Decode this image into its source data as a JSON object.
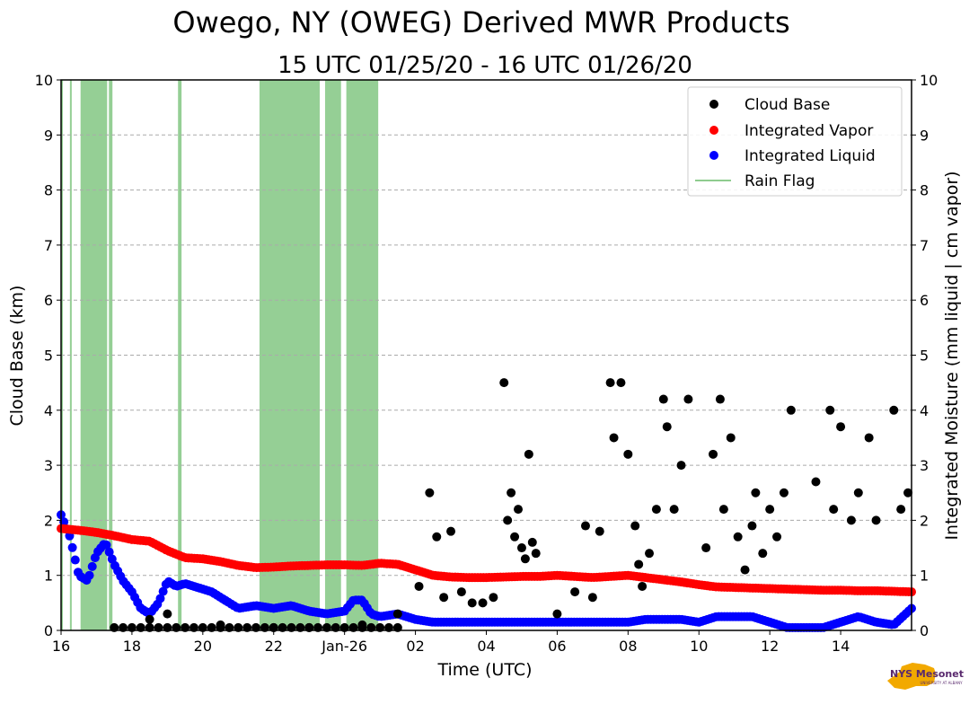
{
  "chart_data": {
    "type": "scatter",
    "title": "Owego, NY (OWEG) Derived MWR Products",
    "subtitle": "15 UTC 01/25/20 - 16 UTC 01/26/20",
    "xlabel": "Time (UTC)",
    "ylabel": "Cloud Base (km)",
    "ylabel_right": "Integrated Moisture (mm liquid | cm vapor)",
    "xlim_hours": [
      0,
      24
    ],
    "ylim": [
      0,
      10
    ],
    "ylim_right": [
      0,
      10
    ],
    "grid": "horizontal dashed",
    "legend_position": "top-right",
    "x_ticks": [
      {
        "hour": 0,
        "label": "16"
      },
      {
        "hour": 2,
        "label": "18"
      },
      {
        "hour": 4,
        "label": "20"
      },
      {
        "hour": 6,
        "label": "22"
      },
      {
        "hour": 8,
        "label": "Jan-26"
      },
      {
        "hour": 10,
        "label": "02"
      },
      {
        "hour": 12,
        "label": "04"
      },
      {
        "hour": 14,
        "label": "06"
      },
      {
        "hour": 16,
        "label": "08"
      },
      {
        "hour": 18,
        "label": "10"
      },
      {
        "hour": 20,
        "label": "12"
      },
      {
        "hour": 22,
        "label": "14"
      }
    ],
    "y_ticks": [
      "0",
      "1",
      "2",
      "3",
      "4",
      "5",
      "6",
      "7",
      "8",
      "9",
      "10"
    ],
    "legend": [
      "Cloud Base",
      "Integrated Vapor",
      "Integrated Liquid",
      "Rain Flag"
    ],
    "colors": {
      "cloud_base": "#000000",
      "vapor": "#ff0000",
      "liquid": "#0000ff",
      "rain": "#2ca02c"
    },
    "rain_flag_spans_hours": [
      [
        0.0,
        0.05
      ],
      [
        0.25,
        0.3
      ],
      [
        0.55,
        1.3
      ],
      [
        1.35,
        1.45
      ],
      [
        3.3,
        3.4
      ],
      [
        5.6,
        7.3
      ],
      [
        7.45,
        7.9
      ],
      [
        8.05,
        8.95
      ]
    ],
    "series": [
      {
        "name": "Integrated Vapor",
        "x": [
          0,
          0.5,
          1,
          1.5,
          2,
          2.5,
          3,
          3.5,
          4,
          4.5,
          5,
          5.5,
          6,
          6.5,
          7,
          7.5,
          8,
          8.5,
          9,
          9.5,
          10,
          10.5,
          11,
          11.5,
          12,
          12.5,
          13,
          13.5,
          14,
          14.5,
          15,
          15.5,
          16,
          16.5,
          17,
          17.5,
          18,
          18.5,
          19,
          19.5,
          20,
          20.5,
          21,
          21.5,
          22,
          22.5,
          23,
          23.5,
          24
        ],
        "y": [
          1.85,
          1.82,
          1.78,
          1.72,
          1.65,
          1.62,
          1.45,
          1.32,
          1.3,
          1.25,
          1.18,
          1.14,
          1.15,
          1.17,
          1.18,
          1.19,
          1.19,
          1.18,
          1.22,
          1.2,
          1.1,
          1.0,
          0.97,
          0.96,
          0.96,
          0.97,
          0.98,
          0.98,
          1.0,
          0.98,
          0.96,
          0.98,
          1.0,
          0.96,
          0.92,
          0.88,
          0.83,
          0.79,
          0.78,
          0.77,
          0.76,
          0.75,
          0.74,
          0.73,
          0.73,
          0.72,
          0.72,
          0.71,
          0.7
        ]
      },
      {
        "name": "Integrated Liquid",
        "x": [
          0,
          0.25,
          0.5,
          0.75,
          1,
          1.25,
          1.5,
          1.75,
          2,
          2.25,
          2.5,
          2.75,
          3,
          3.25,
          3.5,
          3.75,
          4,
          4.25,
          4.5,
          4.75,
          5,
          5.5,
          6,
          6.5,
          7,
          7.5,
          8,
          8.25,
          8.5,
          8.75,
          9,
          9.5,
          10,
          10.5,
          11,
          11.5,
          12,
          12.5,
          13,
          13.5,
          14,
          14.5,
          15,
          15.5,
          16,
          16.5,
          17,
          17.5,
          18,
          18.5,
          19,
          19.5,
          20,
          20.5,
          21,
          21.5,
          22,
          22.5,
          23,
          23.5,
          24
        ],
        "y": [
          2.1,
          1.7,
          1.0,
          0.9,
          1.4,
          1.6,
          1.2,
          0.9,
          0.7,
          0.4,
          0.3,
          0.5,
          0.9,
          0.8,
          0.85,
          0.8,
          0.75,
          0.7,
          0.6,
          0.5,
          0.4,
          0.45,
          0.4,
          0.45,
          0.35,
          0.3,
          0.35,
          0.55,
          0.55,
          0.3,
          0.25,
          0.3,
          0.2,
          0.15,
          0.15,
          0.15,
          0.15,
          0.15,
          0.15,
          0.15,
          0.15,
          0.15,
          0.15,
          0.15,
          0.15,
          0.2,
          0.2,
          0.2,
          0.15,
          0.25,
          0.25,
          0.25,
          0.15,
          0.05,
          0.05,
          0.05,
          0.15,
          0.25,
          0.15,
          0.1,
          0.4
        ]
      },
      {
        "name": "Cloud Base",
        "x": [
          2.5,
          3,
          4.5,
          6,
          7,
          8.5,
          9.5,
          10.1,
          10.4,
          10.6,
          10.8,
          11,
          11.3,
          11.6,
          11.9,
          12.2,
          12.5,
          12.6,
          12.7,
          12.8,
          12.9,
          13.0,
          13.1,
          13.2,
          13.3,
          13.4,
          14.0,
          14.5,
          14.8,
          15.0,
          15.2,
          15.5,
          15.6,
          15.8,
          16.0,
          16.2,
          16.3,
          16.4,
          16.6,
          16.8,
          17.0,
          17.1,
          17.3,
          17.5,
          17.7,
          18.2,
          18.4,
          18.6,
          18.7,
          18.9,
          19.1,
          19.3,
          19.5,
          19.6,
          19.8,
          20.0,
          20.2,
          20.4,
          20.6,
          21.3,
          21.7,
          21.8,
          22.0,
          22.3,
          22.5,
          22.8,
          23.0,
          23.5,
          23.7,
          23.9
        ],
        "y": [
          0.2,
          0.3,
          0.1,
          0.05,
          0.05,
          0.1,
          0.3,
          0.8,
          2.5,
          1.7,
          0.6,
          1.8,
          0.7,
          0.5,
          0.5,
          0.6,
          4.5,
          2.0,
          2.5,
          1.7,
          2.2,
          1.5,
          1.3,
          3.2,
          1.6,
          1.4,
          0.3,
          0.7,
          1.9,
          0.6,
          1.8,
          4.5,
          3.5,
          4.5,
          3.2,
          1.9,
          1.2,
          0.8,
          1.4,
          2.2,
          4.2,
          3.7,
          2.2,
          3.0,
          4.2,
          1.5,
          3.2,
          4.2,
          2.2,
          3.5,
          1.7,
          1.1,
          1.9,
          2.5,
          1.4,
          2.2,
          1.7,
          2.5,
          4.0,
          2.7,
          4.0,
          2.2,
          3.7,
          2.0,
          2.5,
          3.5,
          2.0,
          4.0,
          2.2,
          2.5
        ]
      },
      {
        "name": "Rain Flag",
        "type": "vertical spans"
      }
    ]
  },
  "logo": {
    "text": "NYS Mesonet",
    "subtext": "UNIVERSITY AT ALBANY",
    "color": "#5a2a6e",
    "state_color": "#f2a900"
  }
}
